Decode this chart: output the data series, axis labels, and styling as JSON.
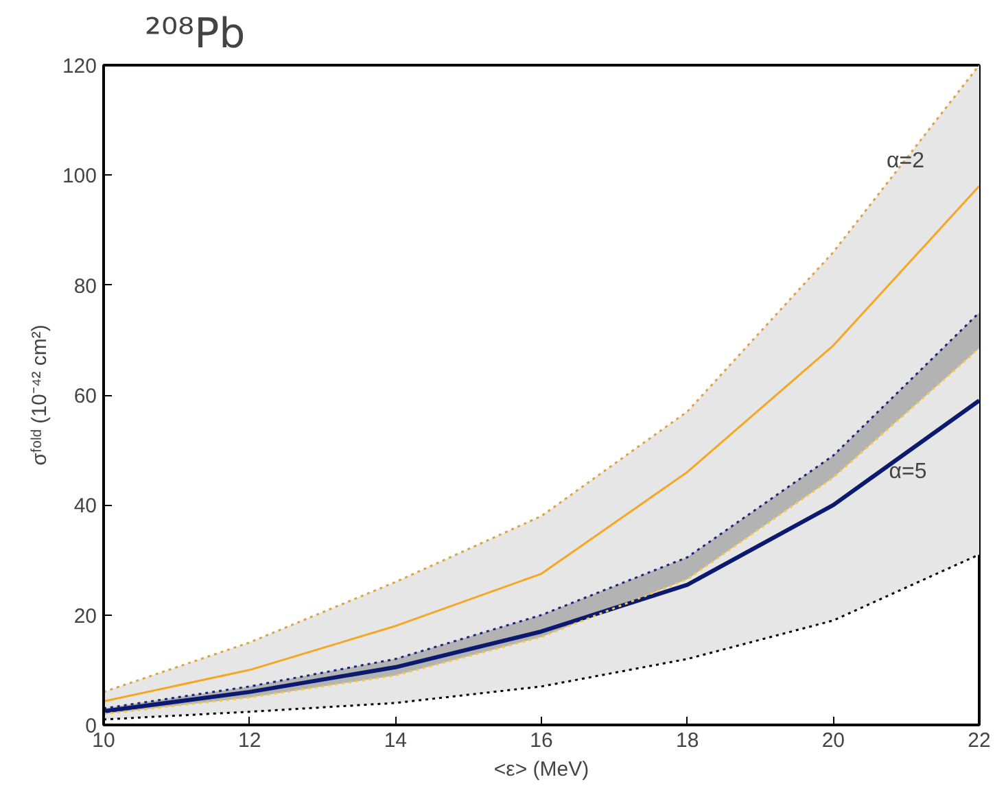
{
  "chart_data": {
    "type": "line",
    "title": "²⁰⁸Pb",
    "xlabel": "<ε> (MeV)",
    "ylabel": "σᶠᵒˡᵈ (10⁻⁴² cm²)",
    "x": [
      10,
      12,
      14,
      16,
      18,
      20,
      22
    ],
    "series": [
      {
        "name": "α=2",
        "color": "#f5a623",
        "values": [
          4.3,
          10,
          18,
          27.5,
          46,
          69,
          98
        ],
        "lower": [
          1,
          2.4,
          4,
          7,
          12,
          19,
          31
        ],
        "upper": [
          6,
          15,
          26,
          38,
          57,
          86,
          120
        ]
      },
      {
        "name": "α=5",
        "color": "#0b1a6e",
        "values": [
          2.5,
          6,
          10.5,
          17,
          25.5,
          40,
          59
        ],
        "lower": [
          2,
          5,
          9,
          16,
          26.5,
          45,
          68.5
        ],
        "upper": [
          3,
          7,
          12,
          20,
          30.5,
          49,
          75
        ]
      },
      {
        "color": "#d9a441",
        "line_style": "dotted",
        "values": [
          6,
          15,
          26,
          38,
          57,
          86,
          120
        ]
      },
      {
        "color": "#000000",
        "line_style": "dotted",
        "values": [
          1,
          2.4,
          4,
          7,
          12,
          19,
          31
        ]
      },
      {
        "color": "#1a237e",
        "line_style": "dotted",
        "values": [
          3,
          7,
          12,
          20,
          30.5,
          49,
          75
        ]
      },
      {
        "color": "#f5c842",
        "line_style": "dotted",
        "values": [
          2,
          5,
          9,
          16,
          26.5,
          45,
          68.5
        ]
      }
    ],
    "xlim": [
      10,
      22
    ],
    "ylim": [
      0,
      120
    ],
    "xticks": [
      10,
      12,
      14,
      16,
      18,
      20,
      22
    ],
    "yticks": [
      0,
      20,
      40,
      60,
      80,
      100,
      120
    ],
    "grid": false,
    "legend": false
  }
}
